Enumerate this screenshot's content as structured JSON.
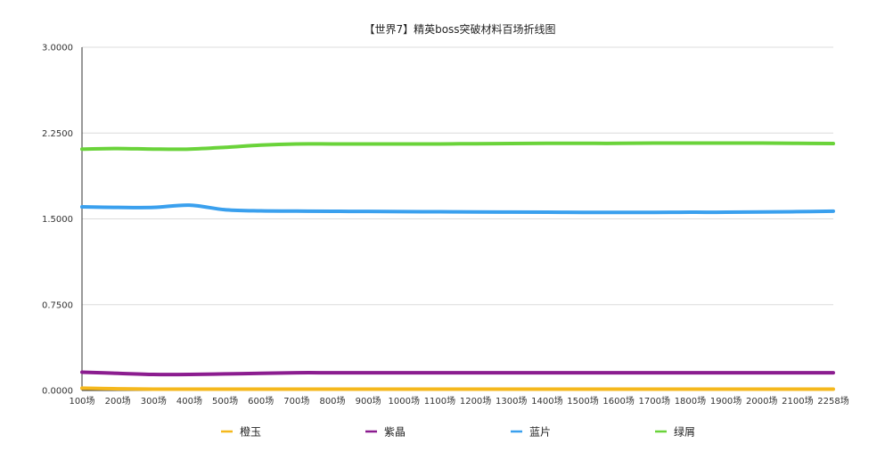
{
  "chart_data": {
    "type": "line",
    "title": "【世界7】精英boss突破材料百场折线图",
    "xlabel": "",
    "ylabel": "",
    "ylim": [
      0,
      3
    ],
    "y_ticks": [
      "0.0000",
      "0.7500",
      "1.5000",
      "2.2500",
      "3.0000"
    ],
    "grid": true,
    "legend_position": "bottom",
    "categories": [
      "100场",
      "200场",
      "300场",
      "400场",
      "500场",
      "600场",
      "700场",
      "800场",
      "900场",
      "1000场",
      "1100场",
      "1200场",
      "1300场",
      "1400场",
      "1500场",
      "1600场",
      "1700场",
      "1800场",
      "1900场",
      "2000场",
      "2100场",
      "2258场"
    ],
    "series": [
      {
        "name": "橙玉",
        "color": "#f5b81c",
        "values": [
          0.02,
          0.015,
          0.012,
          0.012,
          0.012,
          0.012,
          0.012,
          0.012,
          0.012,
          0.012,
          0.012,
          0.012,
          0.012,
          0.012,
          0.012,
          0.012,
          0.012,
          0.012,
          0.012,
          0.012,
          0.012,
          0.012
        ]
      },
      {
        "name": "紫晶",
        "color": "#8b1c8f",
        "values": [
          0.16,
          0.15,
          0.14,
          0.14,
          0.145,
          0.15,
          0.155,
          0.155,
          0.155,
          0.155,
          0.155,
          0.155,
          0.155,
          0.155,
          0.155,
          0.155,
          0.155,
          0.155,
          0.155,
          0.155,
          0.155,
          0.155
        ]
      },
      {
        "name": "蓝片",
        "color": "#3aa0ee",
        "values": [
          1.605,
          1.6,
          1.6,
          1.62,
          1.58,
          1.57,
          1.568,
          1.566,
          1.565,
          1.563,
          1.562,
          1.56,
          1.559,
          1.558,
          1.557,
          1.557,
          1.557,
          1.558,
          1.558,
          1.56,
          1.563,
          1.567
        ]
      },
      {
        "name": "绿屑",
        "color": "#6ad33a",
        "values": [
          2.11,
          2.115,
          2.11,
          2.11,
          2.125,
          2.145,
          2.155,
          2.155,
          2.155,
          2.155,
          2.155,
          2.157,
          2.158,
          2.16,
          2.16,
          2.16,
          2.162,
          2.162,
          2.162,
          2.162,
          2.16,
          2.158
        ]
      }
    ]
  }
}
